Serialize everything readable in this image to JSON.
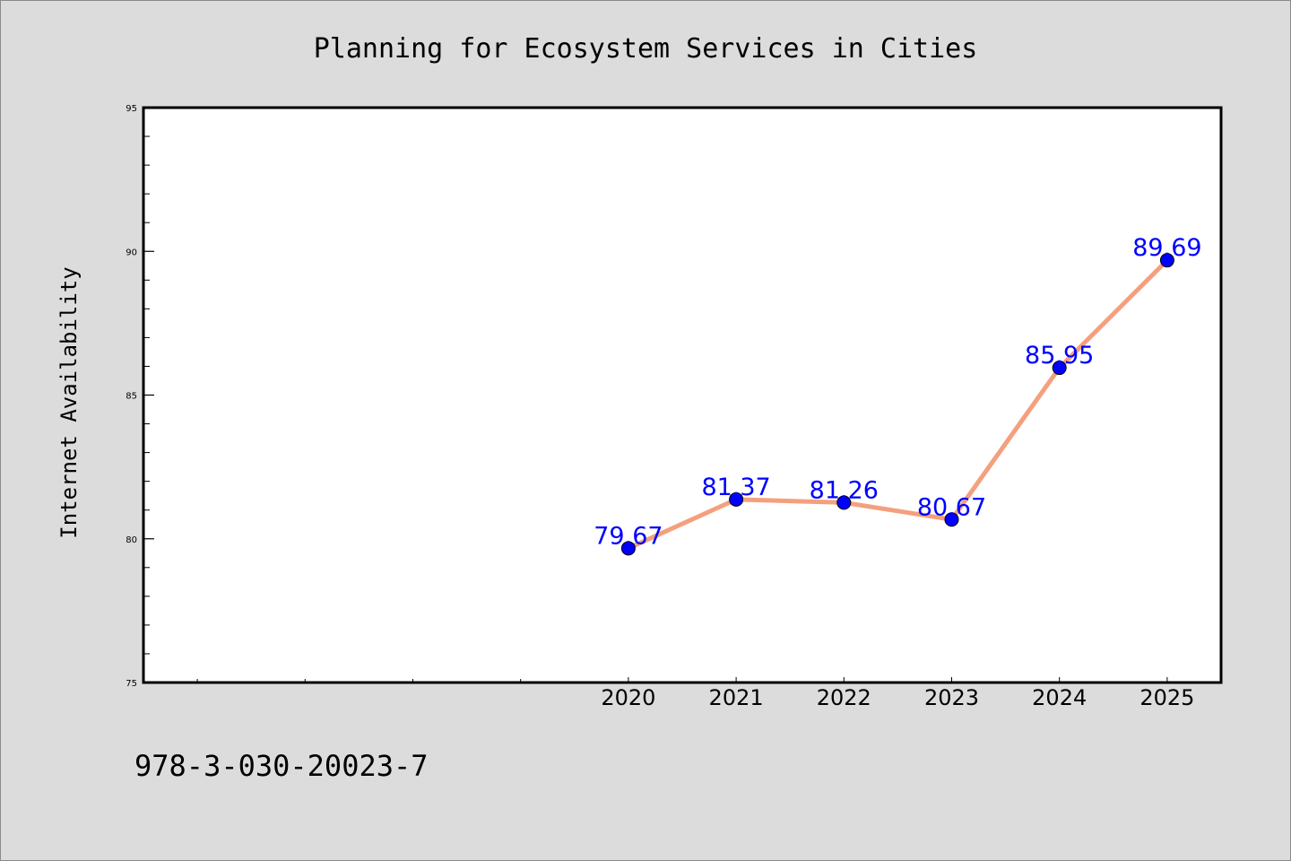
{
  "chart_data": {
    "type": "line",
    "title": "Planning for Ecosystem Services in Cities",
    "xlabel": "",
    "ylabel": "Internet Availability",
    "x": [
      "2020",
      "2021",
      "2022",
      "2023",
      "2024",
      "2025"
    ],
    "series": [
      {
        "values": [
          79.67,
          81.37,
          81.26,
          80.67,
          85.95,
          89.69
        ]
      }
    ],
    "value_labels": [
      "79.67",
      "81.37",
      "81.26",
      "80.67",
      "85.95",
      "89.69"
    ],
    "ylim": [
      75,
      95
    ],
    "xlim": [
      2015.5,
      2025.5
    ],
    "y_ticks": [
      75,
      80,
      85,
      90,
      95
    ],
    "y_tick_labels": [
      "75",
      "80",
      "85",
      "90",
      "95"
    ],
    "grid": false,
    "line_color": "#f4a07e",
    "marker_color": "#0000ff",
    "label_color": "#0000ff"
  },
  "annotation": "978-3-030-20023-7"
}
